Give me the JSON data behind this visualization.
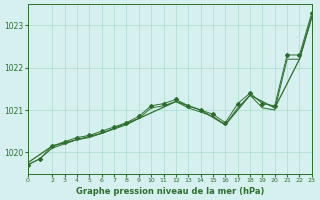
{
  "title": "Graphe pression niveau de la mer (hPa)",
  "xlim": [
    0,
    23
  ],
  "ylim": [
    1019.5,
    1023.5
  ],
  "yticks": [
    1020,
    1021,
    1022,
    1023
  ],
  "xticks": [
    0,
    2,
    3,
    4,
    5,
    6,
    7,
    8,
    9,
    10,
    11,
    12,
    13,
    14,
    15,
    16,
    17,
    18,
    19,
    20,
    21,
    22,
    23
  ],
  "xtick_labels": [
    "0",
    "2",
    "3",
    "4",
    "5",
    "6",
    "7",
    "8",
    "9",
    "10",
    "11",
    "12",
    "13",
    "14",
    "15",
    "16",
    "17",
    "18",
    "19",
    "20",
    "21",
    "22",
    "23"
  ],
  "background_color": "#d6f0f0",
  "grid_color": "#aaddcc",
  "line_color": "#2d6e2d",
  "line1_x": [
    0,
    1,
    2,
    3,
    4,
    5,
    6,
    7,
    8,
    9,
    10,
    11,
    12,
    13,
    14,
    15,
    16,
    17,
    18,
    19,
    20,
    21,
    22,
    23
  ],
  "line1_y": [
    1019.7,
    1019.85,
    1020.1,
    1020.2,
    1020.3,
    1020.35,
    1020.45,
    1020.55,
    1020.65,
    1020.8,
    1021.05,
    1021.1,
    1021.2,
    1021.05,
    1020.95,
    1020.85,
    1020.65,
    1021.05,
    1021.35,
    1021.05,
    1021.0,
    1022.2,
    1022.2,
    1023.2
  ],
  "line2_x": [
    0,
    1,
    2,
    3,
    4,
    5,
    6,
    7,
    8,
    9,
    10,
    11,
    12,
    13,
    14,
    15,
    16,
    17,
    18,
    19,
    20,
    21,
    22,
    23
  ],
  "line2_y": [
    1019.7,
    1019.85,
    1020.15,
    1020.25,
    1020.35,
    1020.4,
    1020.5,
    1020.6,
    1020.7,
    1020.85,
    1021.1,
    1021.15,
    1021.25,
    1021.1,
    1021.0,
    1020.9,
    1020.7,
    1021.15,
    1021.4,
    1021.15,
    1021.1,
    1022.3,
    1022.3,
    1023.3
  ],
  "line3_x": [
    0,
    2,
    4,
    6,
    9,
    12,
    14,
    16,
    18,
    20,
    22,
    23
  ],
  "line3_y": [
    1019.75,
    1020.15,
    1020.3,
    1020.45,
    1020.8,
    1021.2,
    1021.0,
    1020.65,
    1021.35,
    1021.05,
    1022.2,
    1023.2
  ]
}
